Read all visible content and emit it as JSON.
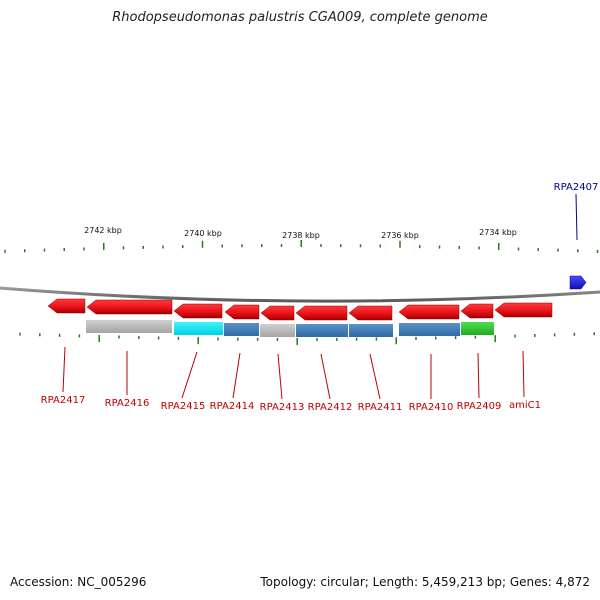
{
  "title": "Rhodopseudomonas palustris CGA009, complete genome",
  "footer": {
    "accession": "Accession: NC_005296",
    "summary": "Topology: circular; Length: 5,459,213 bp; Genes: 4,872"
  },
  "colors": {
    "forward_gene": "#1f1fe6",
    "reverse_gene": "#e8121b",
    "label_reverse": "#c00000",
    "label_forward": "#000099",
    "tick": "#2a7a1a",
    "backbone": "#7a7a7a",
    "cog_gray": "#b8b8b8",
    "cog_cyan": "#00e5f0",
    "cog_blue": "#3f7fb8",
    "cog_green": "#33cc33"
  },
  "scale": {
    "unit": "kbp",
    "major_ticks_kbp": [
      2742,
      2740,
      2738,
      2736,
      2734
    ],
    "major_tick_labels": [
      "2742 kbp",
      "2740 kbp",
      "2738 kbp",
      "2736 kbp",
      "2734 kbp"
    ]
  },
  "genes": [
    {
      "name": "RPA2417",
      "strand": "reverse"
    },
    {
      "name": "RPA2416",
      "strand": "reverse",
      "cog": "gray"
    },
    {
      "name": "RPA2415",
      "strand": "reverse",
      "cog": "cyan"
    },
    {
      "name": "RPA2414",
      "strand": "reverse",
      "cog": "blue"
    },
    {
      "name": "RPA2413",
      "strand": "reverse",
      "cog": "gray"
    },
    {
      "name": "RPA2412",
      "strand": "reverse",
      "cog": "blue"
    },
    {
      "name": "RPA2411",
      "strand": "reverse",
      "cog": "blue"
    },
    {
      "name": "RPA2410",
      "strand": "reverse",
      "cog": "blue"
    },
    {
      "name": "RPA2409",
      "strand": "reverse",
      "cog": "green"
    },
    {
      "name": "amiC1",
      "strand": "reverse"
    },
    {
      "name": "RPA2407",
      "strand": "forward"
    }
  ]
}
